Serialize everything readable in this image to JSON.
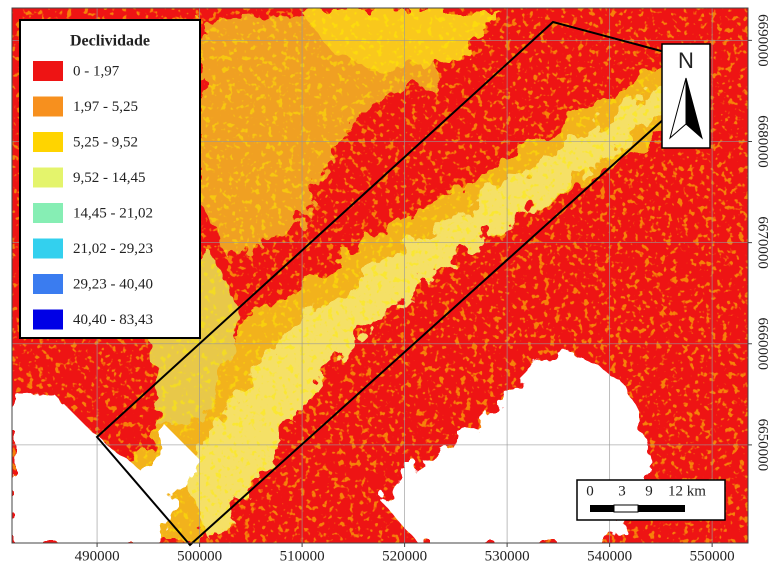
{
  "map": {
    "legend": {
      "title": "Declividade",
      "items": [
        {
          "label": "0 - 1,97",
          "color": "#ee1414"
        },
        {
          "label": "1,97 - 5,25",
          "color": "#f7901e"
        },
        {
          "label": "5,25 - 9,52",
          "color": "#ffd400"
        },
        {
          "label": "9,52 - 14,45",
          "color": "#e4f46c"
        },
        {
          "label": "14,45 - 21,02",
          "color": "#86eeb4"
        },
        {
          "label": "21,02 - 29,23",
          "color": "#33d0ee"
        },
        {
          "label": "29,23 - 40,40",
          "color": "#3a7cf0"
        },
        {
          "label": "40,40 - 83,43",
          "color": "#0000e6"
        }
      ]
    },
    "xlim": [
      481700,
      553500
    ],
    "ylim": [
      6640300,
      6693200
    ],
    "xticks": [
      490000,
      500000,
      510000,
      520000,
      530000,
      540000,
      550000
    ],
    "yticks": [
      6650000,
      6660000,
      6670000,
      6680000,
      6690000
    ],
    "grid": true,
    "north_label": "N",
    "scale_bar": {
      "labels": [
        "0",
        "3",
        "9",
        "12 km"
      ]
    }
  }
}
